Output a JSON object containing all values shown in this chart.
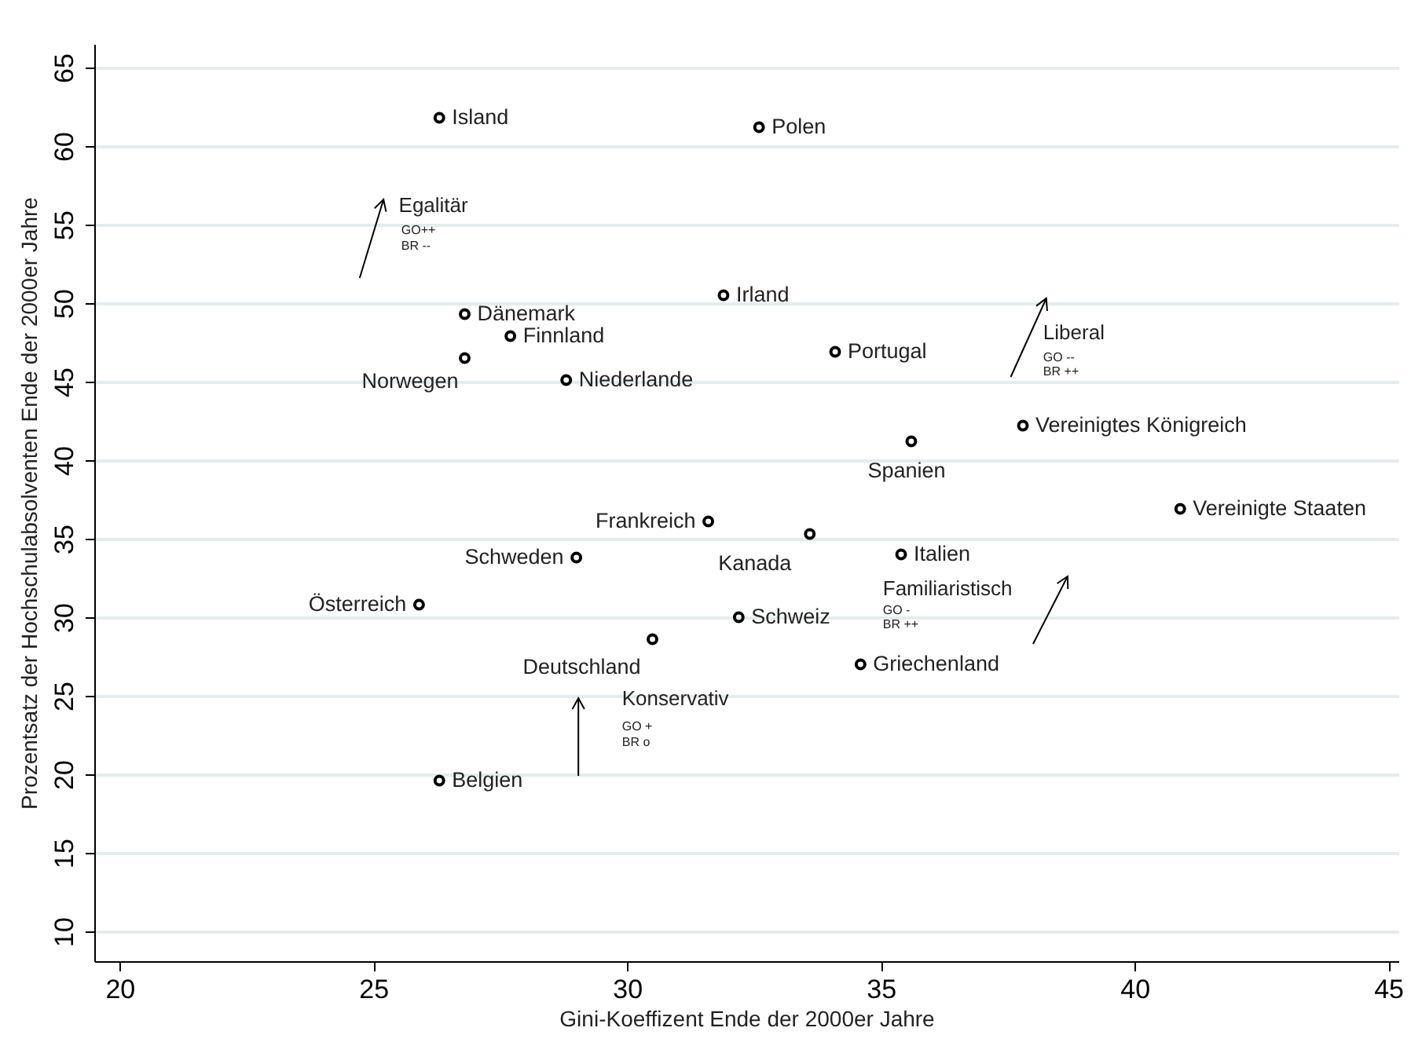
{
  "chart_data": {
    "type": "scatter",
    "xlabel": "Gini-Koeffizent Ende der 2000er Jahre",
    "ylabel": "Prozentsatz der Hochschulabsolventen Ende der 2000er Jahre",
    "xlim": [
      19.5,
      45.2
    ],
    "ylim": [
      8.1,
      66.5
    ],
    "xticks": [
      20,
      25,
      30,
      35,
      40,
      45
    ],
    "yticks": [
      10,
      15,
      20,
      25,
      30,
      35,
      40,
      45,
      50,
      55,
      60,
      65
    ],
    "grid": "y",
    "marker": "circle",
    "series": [
      {
        "name": "Island",
        "color": "#000000",
        "x": [
          26.3
        ],
        "values": [
          61.8
        ]
      },
      {
        "name": "Polen",
        "color": "#000000",
        "x": [
          32.6
        ],
        "values": [
          61.2
        ]
      },
      {
        "name": "Dänemark",
        "color": "#000000",
        "x": [
          26.8
        ],
        "values": [
          49.3
        ]
      },
      {
        "name": "Finnland",
        "color": "#000000",
        "x": [
          27.7
        ],
        "values": [
          47.9
        ]
      },
      {
        "name": "Norwegen",
        "color": "#000000",
        "x": [
          26.8
        ],
        "values": [
          46.5
        ]
      },
      {
        "name": "Niederlande",
        "color": "#000000",
        "x": [
          28.8
        ],
        "values": [
          45.1
        ]
      },
      {
        "name": "Irland",
        "color": "#000000",
        "x": [
          31.9
        ],
        "values": [
          50.5
        ]
      },
      {
        "name": "Portugal",
        "color": "#000000",
        "x": [
          34.1
        ],
        "values": [
          46.9
        ]
      },
      {
        "name": "Spanien",
        "color": "#000000",
        "x": [
          35.6
        ],
        "values": [
          41.2
        ]
      },
      {
        "name": "Vereinigtes Königreich",
        "color": "#000000",
        "x": [
          37.8
        ],
        "values": [
          42.2
        ]
      },
      {
        "name": "Vereinigte Staaten",
        "color": "#000000",
        "x": [
          40.9
        ],
        "values": [
          36.9
        ]
      },
      {
        "name": "Frankreich",
        "color": "#000000",
        "x": [
          31.6
        ],
        "values": [
          36.1
        ]
      },
      {
        "name": "Kanada",
        "color": "#000000",
        "x": [
          33.6
        ],
        "values": [
          35.3
        ]
      },
      {
        "name": "Schweden",
        "color": "#000000",
        "x": [
          29.0
        ],
        "values": [
          33.8
        ]
      },
      {
        "name": "Italien",
        "color": "#000000",
        "x": [
          35.4
        ],
        "values": [
          34.0
        ]
      },
      {
        "name": "Österreich",
        "color": "#000000",
        "x": [
          25.9
        ],
        "values": [
          30.8
        ]
      },
      {
        "name": "Schweiz",
        "color": "#000000",
        "x": [
          32.2
        ],
        "values": [
          30.0
        ]
      },
      {
        "name": "Deutschland",
        "color": "#000000",
        "x": [
          30.5
        ],
        "values": [
          28.6
        ]
      },
      {
        "name": "Griechenland",
        "color": "#000000",
        "x": [
          34.6
        ],
        "values": [
          27.0
        ]
      },
      {
        "name": "Belgien",
        "color": "#000000",
        "x": [
          26.3
        ],
        "values": [
          19.6
        ]
      }
    ],
    "annotations": [
      "Egalitär",
      "GO++",
      "BR --",
      "Liberal",
      "GO --",
      "BR ++",
      "Familiaristisch",
      "GO -",
      "BR ++",
      "Konservativ",
      "GO +",
      "BR o"
    ]
  }
}
